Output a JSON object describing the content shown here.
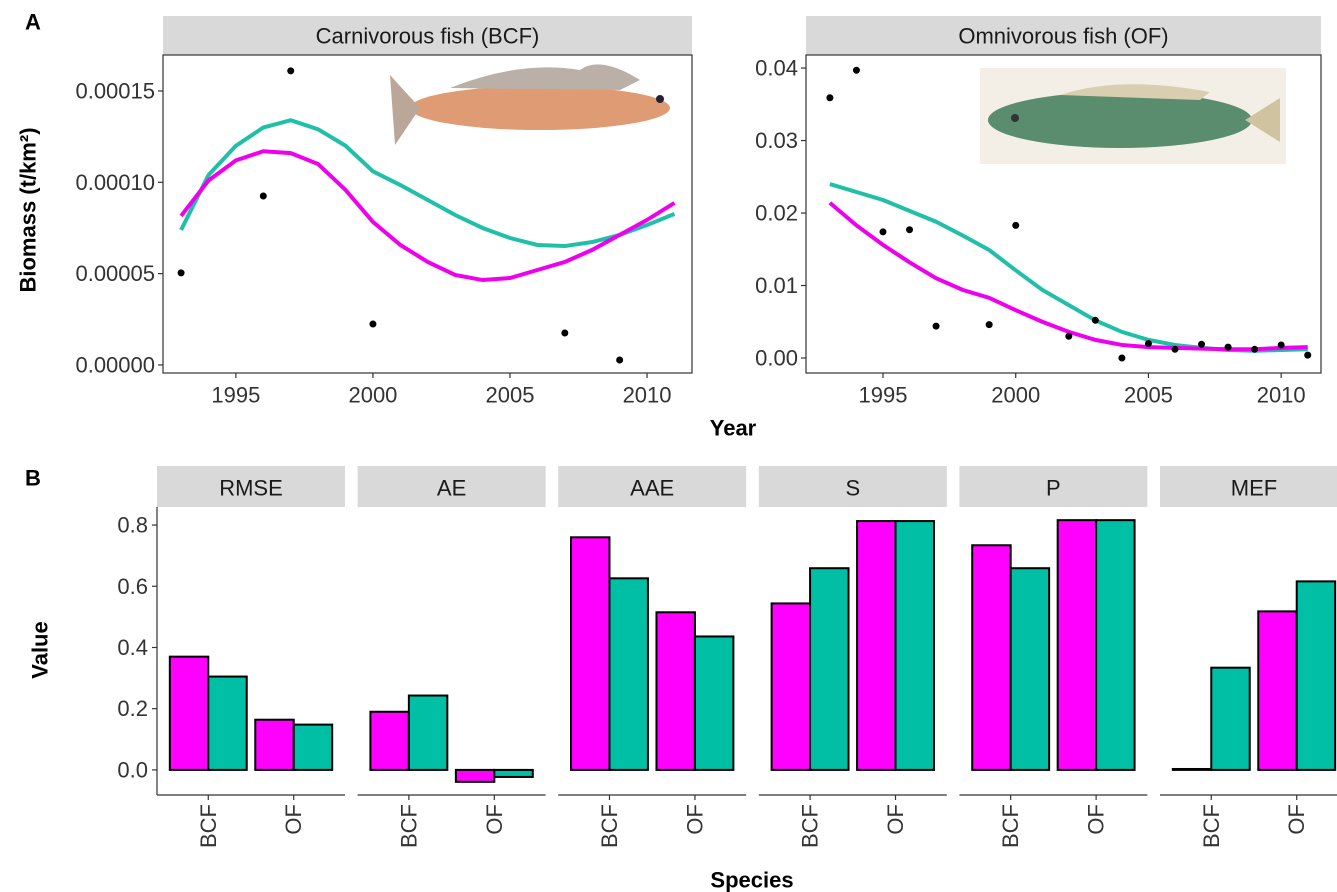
{
  "chart_data": [
    {
      "type": "line",
      "tag": "A",
      "x_label": "Year",
      "y_label": "Biomass (t/km²)",
      "facets": [
        {
          "title": "Carnivorous fish (BCF)",
          "xlim": [
            1992.34,
            2011.64
          ],
          "ylim": [
            -4.4e-06,
            0.0001697
          ],
          "xticks": [
            1995,
            2000,
            2005,
            2010
          ],
          "yticks": [
            {
              "value": 0,
              "label": "0.00000"
            },
            {
              "value": 5e-05,
              "label": "0.00005"
            },
            {
              "value": 0.0001,
              "label": "0.00010"
            },
            {
              "value": 0.00015,
              "label": "0.00015"
            }
          ],
          "points": {
            "x": [
              1993,
              1996,
              1997,
              2000,
              2007,
              2009
            ],
            "y": [
              5.04e-05,
              9.25e-05,
              0.000161,
              2.24e-05,
              1.75e-05,
              2.7e-06
            ]
          },
          "x": [
            1993,
            1994,
            1995,
            1996,
            1997,
            1998,
            1999,
            2000,
            2001,
            2002,
            2003,
            2004,
            2005,
            2006,
            2007,
            2008,
            2009,
            2010,
            2011
          ],
          "series": [
            {
              "color": "#1fbfa8",
              "values": [
                7.39e-05,
                0.000104,
                0.00012,
                0.00013,
                0.000134,
                0.000129,
                0.00012,
                0.000106,
                9.85e-05,
                9.03e-05,
                8.21e-05,
                7.5e-05,
                6.95e-05,
                6.57e-05,
                6.51e-05,
                6.73e-05,
                7.12e-05,
                7.66e-05,
                8.27e-05
              ]
            },
            {
              "color": "#ee00ee",
              "values": [
                8.16e-05,
                0.000101,
                0.000112,
                0.000117,
                0.000116,
                0.00011,
                9.58e-05,
                7.83e-05,
                6.57e-05,
                5.64e-05,
                4.93e-05,
                4.65e-05,
                4.76e-05,
                5.2e-05,
                5.64e-05,
                6.3e-05,
                7.12e-05,
                7.94e-05,
                8.87e-05
              ]
            }
          ]
        },
        {
          "title": "Omnivorous fish (OF)",
          "xlim": [
            1992.1,
            2011.5
          ],
          "ylim": [
            -0.00207,
            0.0418
          ],
          "xticks": [
            1995,
            2000,
            2005,
            2010
          ],
          "yticks": [
            {
              "value": 0,
              "label": "0.00"
            },
            {
              "value": 0.01,
              "label": "0.01"
            },
            {
              "value": 0.02,
              "label": "0.02"
            },
            {
              "value": 0.03,
              "label": "0.03"
            },
            {
              "value": 0.04,
              "label": "0.04"
            }
          ],
          "points": {
            "x": [
              1993,
              1994,
              1995,
              1996,
              1997,
              1999,
              2000,
              2002,
              2003,
              2004,
              2005,
              2006,
              2007,
              2008,
              2009,
              2010,
              2011
            ],
            "y": [
              0.0359,
              0.0397,
              0.0174,
              0.0177,
              0.0044,
              0.0046,
              0.0183,
              0.003,
              0.0052,
              0,
              0.002,
              0.0012,
              0.0019,
              0.0015,
              0.0012,
              0.0018,
              0.0004
            ]
          },
          "x": [
            1993,
            1994,
            1995,
            1996,
            1997,
            1998,
            1999,
            2000,
            2001,
            2002,
            2003,
            2004,
            2005,
            2006,
            2007,
            2008,
            2009,
            2010,
            2011
          ],
          "series": [
            {
              "color": "#1fbfa8",
              "values": [
                0.024,
                0.0229,
                0.0218,
                0.0203,
                0.0188,
                0.0169,
                0.0149,
                0.0121,
                0.0094,
                0.0073,
                0.0052,
                0.0036,
                0.0025,
                0.0018,
                0.0014,
                0.0011,
                0.001,
                0.0011,
                0.0012
              ]
            },
            {
              "color": "#ee00ee",
              "values": [
                0.0214,
                0.0183,
                0.0156,
                0.0132,
                0.011,
                0.0094,
                0.0083,
                0.0066,
                0.005,
                0.0036,
                0.0025,
                0.0018,
                0.0015,
                0.0014,
                0.0013,
                0.0012,
                0.0012,
                0.0014,
                0.0015
              ]
            }
          ]
        }
      ]
    },
    {
      "type": "bar",
      "tag": "B",
      "x_label": "Species",
      "y_label": "Value",
      "categories": [
        "BCF",
        "OF"
      ],
      "ylim": [
        -0.082,
        0.859
      ],
      "yticks": [
        {
          "value": 0,
          "label": "0.0"
        },
        {
          "value": 0.2,
          "label": "0.2"
        },
        {
          "value": 0.4,
          "label": "0.4"
        },
        {
          "value": 0.6,
          "label": "0.6"
        },
        {
          "value": 0.8,
          "label": "0.8"
        }
      ],
      "facets": [
        {
          "title": "RMSE",
          "series": [
            {
              "color": "#ff00ff",
              "values": [
                0.37,
                0.164
              ]
            },
            {
              "color": "#00bfa5",
              "values": [
                0.305,
                0.148
              ]
            }
          ]
        },
        {
          "title": "AE",
          "series": [
            {
              "color": "#ff00ff",
              "values": [
                0.19,
                -0.039
              ]
            },
            {
              "color": "#00bfa5",
              "values": [
                0.243,
                -0.023
              ]
            }
          ]
        },
        {
          "title": "AAE",
          "series": [
            {
              "color": "#ff00ff",
              "values": [
                0.76,
                0.515
              ]
            },
            {
              "color": "#00bfa5",
              "values": [
                0.626,
                0.436
              ]
            }
          ]
        },
        {
          "title": "S",
          "series": [
            {
              "color": "#ff00ff",
              "values": [
                0.544,
                0.813
              ]
            },
            {
              "color": "#00bfa5",
              "values": [
                0.659,
                0.813
              ]
            }
          ]
        },
        {
          "title": "P",
          "series": [
            {
              "color": "#ff00ff",
              "values": [
                0.734,
                0.816
              ]
            },
            {
              "color": "#00bfa5",
              "values": [
                0.659,
                0.816
              ]
            }
          ]
        },
        {
          "title": "MEF",
          "series": [
            {
              "color": "#ff00ff",
              "values": [
                0.003,
                0.518
              ]
            },
            {
              "color": "#00bfa5",
              "values": [
                0.334,
                0.616
              ]
            }
          ]
        }
      ]
    }
  ]
}
